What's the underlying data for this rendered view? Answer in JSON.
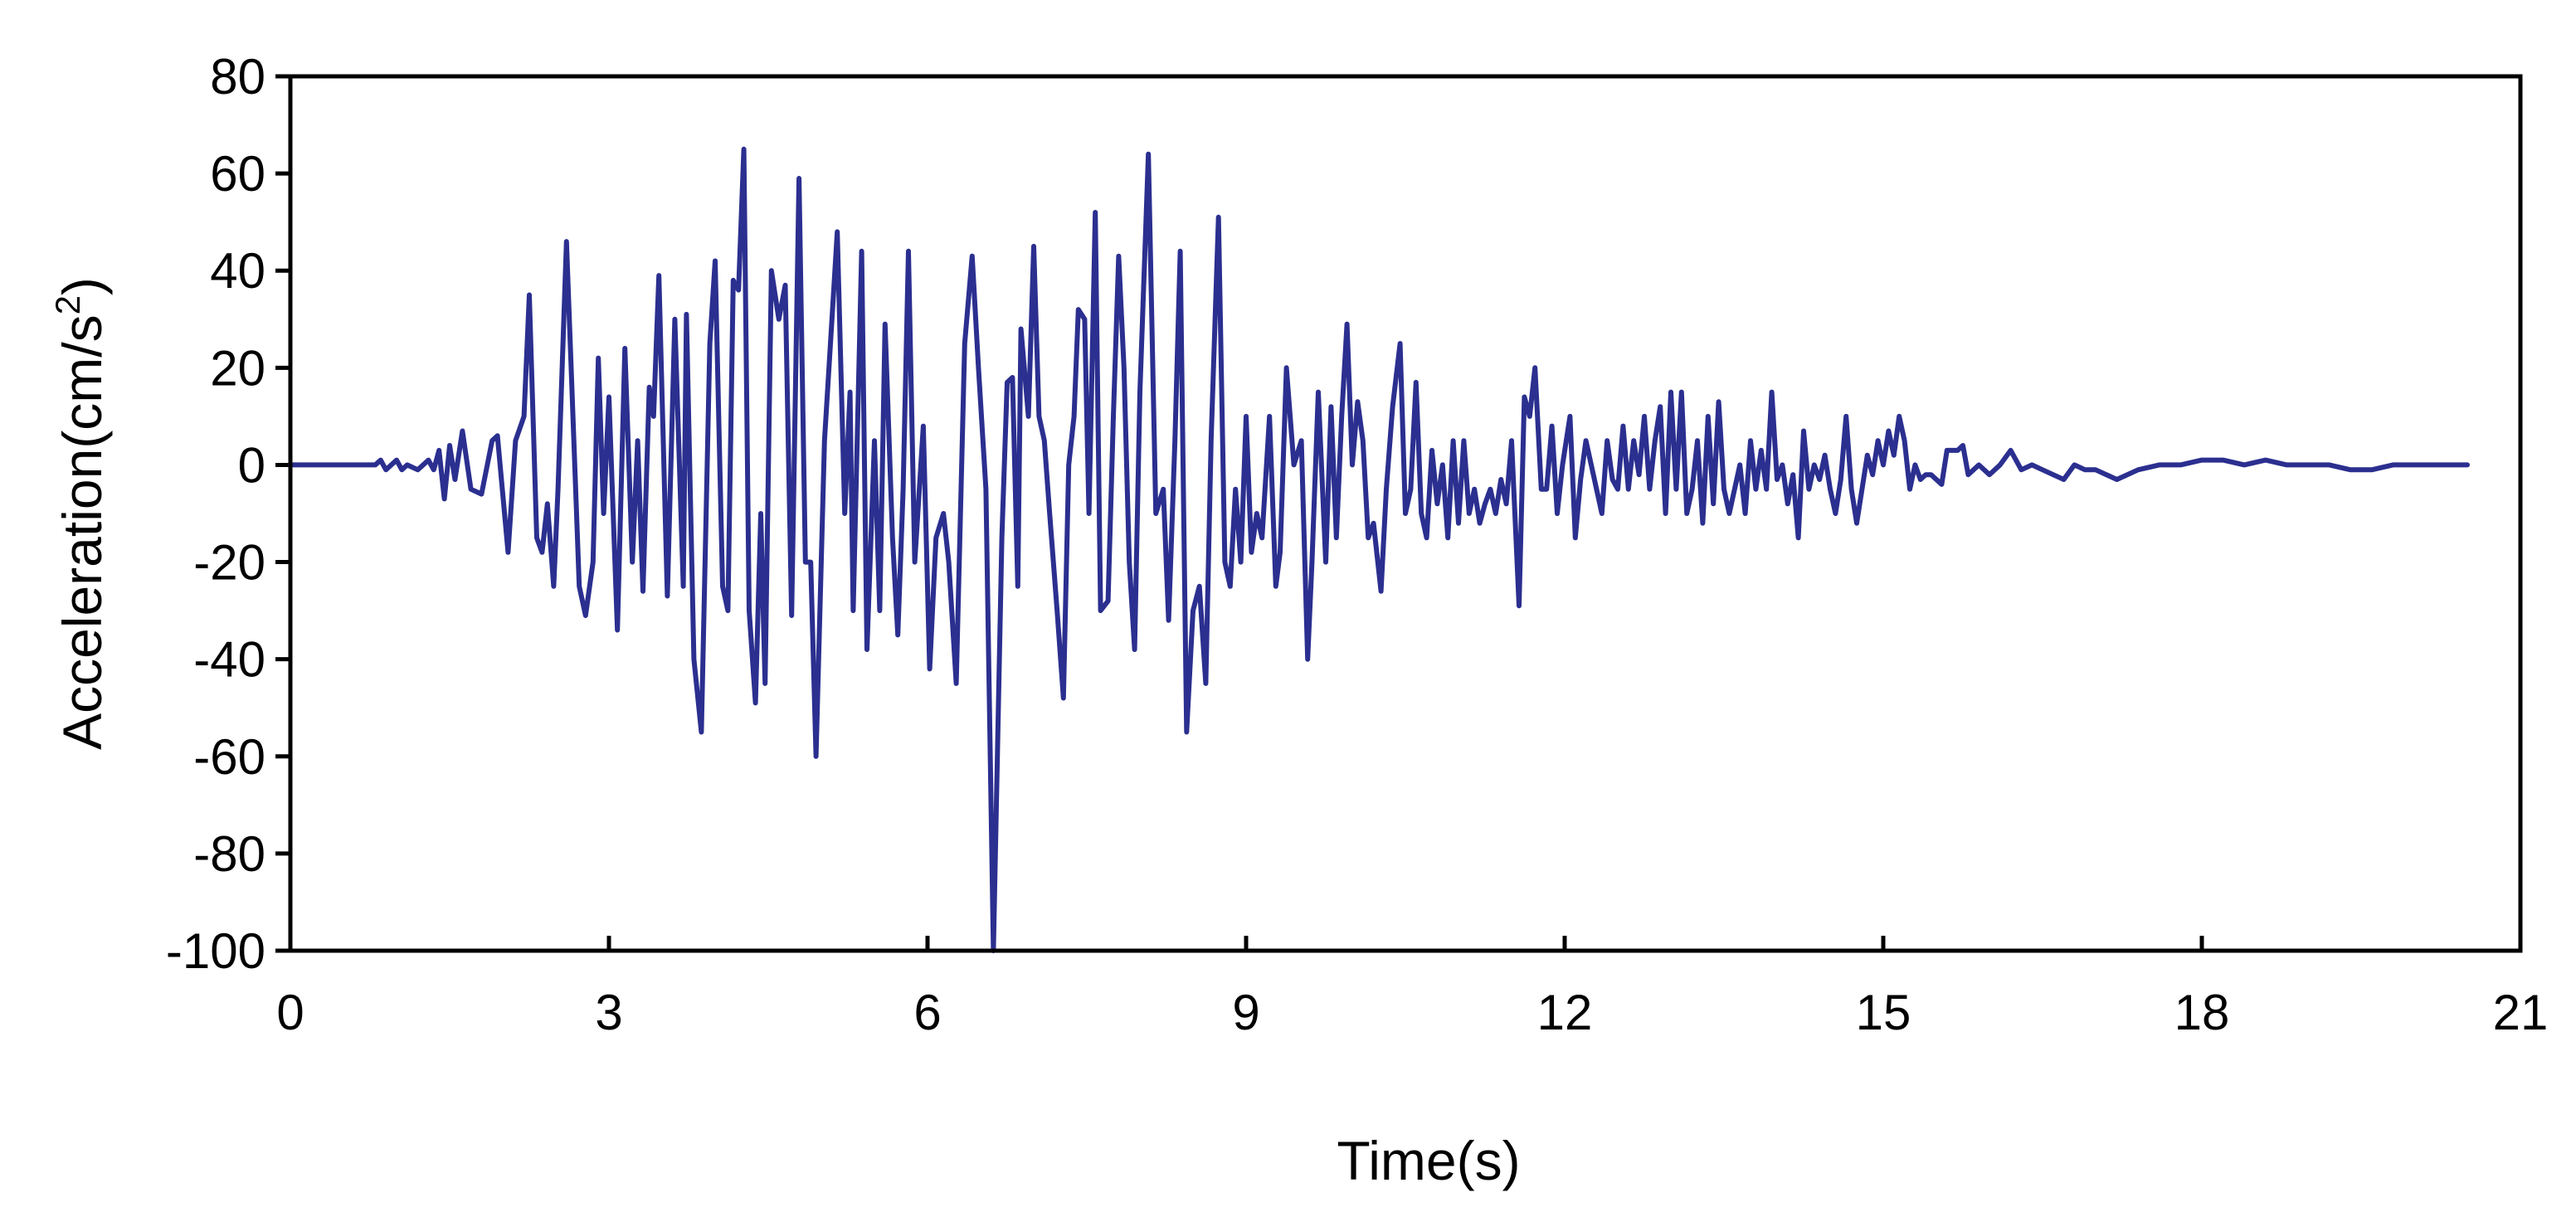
{
  "chart_data": {
    "type": "line",
    "title": "",
    "xlabel": "Time(s)",
    "ylabel_main": "Acceleration(cm/s",
    "ylabel_sup": "2",
    "ylabel_close": ")",
    "xlim": [
      0,
      21
    ],
    "ylim": [
      -100,
      80
    ],
    "xticks": [
      0,
      3,
      6,
      9,
      12,
      15,
      18,
      21
    ],
    "yticks": [
      80,
      60,
      40,
      20,
      0,
      -20,
      -40,
      -60,
      -80,
      -100
    ],
    "grid": false,
    "legend": "none",
    "series": [
      {
        "color": "#2b2f8f",
        "points": [
          [
            0,
            0
          ],
          [
            0.5,
            0
          ],
          [
            0.8,
            0
          ],
          [
            0.85,
            1
          ],
          [
            0.9,
            -1
          ],
          [
            0.95,
            0
          ],
          [
            1.0,
            1
          ],
          [
            1.05,
            -1
          ],
          [
            1.1,
            0
          ],
          [
            1.2,
            -1
          ],
          [
            1.3,
            1
          ],
          [
            1.35,
            -1
          ],
          [
            1.4,
            3
          ],
          [
            1.45,
            -7
          ],
          [
            1.5,
            4
          ],
          [
            1.55,
            -3
          ],
          [
            1.62,
            7
          ],
          [
            1.7,
            -5
          ],
          [
            1.8,
            -6
          ],
          [
            1.9,
            5
          ],
          [
            1.95,
            6
          ],
          [
            2.05,
            -18
          ],
          [
            2.12,
            5
          ],
          [
            2.2,
            10
          ],
          [
            2.25,
            35
          ],
          [
            2.32,
            -15
          ],
          [
            2.37,
            -18
          ],
          [
            2.42,
            -8
          ],
          [
            2.48,
            -25
          ],
          [
            2.52,
            -5
          ],
          [
            2.6,
            46
          ],
          [
            2.72,
            -25
          ],
          [
            2.78,
            -31
          ],
          [
            2.85,
            -20
          ],
          [
            2.9,
            22
          ],
          [
            2.95,
            -10
          ],
          [
            3.0,
            14
          ],
          [
            3.08,
            -34
          ],
          [
            3.15,
            24
          ],
          [
            3.22,
            -20
          ],
          [
            3.27,
            5
          ],
          [
            3.32,
            -26
          ],
          [
            3.38,
            16
          ],
          [
            3.42,
            10
          ],
          [
            3.47,
            39
          ],
          [
            3.55,
            -27
          ],
          [
            3.62,
            30
          ],
          [
            3.7,
            -25
          ],
          [
            3.73,
            31
          ],
          [
            3.8,
            -40
          ],
          [
            3.87,
            -55
          ],
          [
            3.95,
            25
          ],
          [
            4.0,
            42
          ],
          [
            4.07,
            -25
          ],
          [
            4.12,
            -30
          ],
          [
            4.17,
            38
          ],
          [
            4.22,
            36
          ],
          [
            4.27,
            65
          ],
          [
            4.32,
            -30
          ],
          [
            4.38,
            -49
          ],
          [
            4.43,
            -10
          ],
          [
            4.47,
            -45
          ],
          [
            4.53,
            40
          ],
          [
            4.6,
            30
          ],
          [
            4.66,
            37
          ],
          [
            4.72,
            -31
          ],
          [
            4.79,
            59
          ],
          [
            4.85,
            -20
          ],
          [
            4.9,
            -20
          ],
          [
            4.95,
            -60
          ],
          [
            5.03,
            5
          ],
          [
            5.1,
            30
          ],
          [
            5.15,
            48
          ],
          [
            5.22,
            -10
          ],
          [
            5.27,
            15
          ],
          [
            5.3,
            -30
          ],
          [
            5.38,
            44
          ],
          [
            5.43,
            -38
          ],
          [
            5.5,
            5
          ],
          [
            5.55,
            -30
          ],
          [
            5.6,
            29
          ],
          [
            5.67,
            -15
          ],
          [
            5.72,
            -35
          ],
          [
            5.77,
            -5
          ],
          [
            5.82,
            44
          ],
          [
            5.88,
            -20
          ],
          [
            5.96,
            8
          ],
          [
            6.02,
            -42
          ],
          [
            6.08,
            -15
          ],
          [
            6.15,
            -10
          ],
          [
            6.2,
            -20
          ],
          [
            6.27,
            -45
          ],
          [
            6.35,
            25
          ],
          [
            6.42,
            43
          ],
          [
            6.48,
            20
          ],
          [
            6.55,
            -5
          ],
          [
            6.62,
            -100
          ],
          [
            6.7,
            -15
          ],
          [
            6.75,
            17
          ],
          [
            6.8,
            18
          ],
          [
            6.85,
            -25
          ],
          [
            6.88,
            28
          ],
          [
            6.95,
            10
          ],
          [
            7.0,
            45
          ],
          [
            7.05,
            10
          ],
          [
            7.1,
            5
          ],
          [
            7.15,
            -10
          ],
          [
            7.22,
            -30
          ],
          [
            7.28,
            -48
          ],
          [
            7.33,
            0
          ],
          [
            7.38,
            10
          ],
          [
            7.42,
            32
          ],
          [
            7.48,
            30
          ],
          [
            7.52,
            -10
          ],
          [
            7.58,
            52
          ],
          [
            7.63,
            -30
          ],
          [
            7.7,
            -28
          ],
          [
            7.75,
            10
          ],
          [
            7.8,
            43
          ],
          [
            7.85,
            20
          ],
          [
            7.9,
            -20
          ],
          [
            7.95,
            -38
          ],
          [
            8.0,
            15
          ],
          [
            8.08,
            64
          ],
          [
            8.15,
            -10
          ],
          [
            8.22,
            -5
          ],
          [
            8.27,
            -32
          ],
          [
            8.33,
            5
          ],
          [
            8.38,
            44
          ],
          [
            8.44,
            -55
          ],
          [
            8.5,
            -30
          ],
          [
            8.56,
            -25
          ],
          [
            8.62,
            -45
          ],
          [
            8.67,
            5
          ],
          [
            8.74,
            51
          ],
          [
            8.8,
            -20
          ],
          [
            8.85,
            -25
          ],
          [
            8.9,
            -5
          ],
          [
            8.95,
            -20
          ],
          [
            9.0,
            10
          ],
          [
            9.05,
            -18
          ],
          [
            9.1,
            -10
          ],
          [
            9.15,
            -15
          ],
          [
            9.22,
            10
          ],
          [
            9.28,
            -25
          ],
          [
            9.32,
            -18
          ],
          [
            9.38,
            20
          ],
          [
            9.45,
            0
          ],
          [
            9.52,
            5
          ],
          [
            9.58,
            -40
          ],
          [
            9.62,
            -20
          ],
          [
            9.68,
            15
          ],
          [
            9.75,
            -20
          ],
          [
            9.8,
            12
          ],
          [
            9.85,
            -15
          ],
          [
            9.9,
            10
          ],
          [
            9.95,
            29
          ],
          [
            10.0,
            0
          ],
          [
            10.05,
            13
          ],
          [
            10.1,
            5
          ],
          [
            10.15,
            -15
          ],
          [
            10.2,
            -12
          ],
          [
            10.27,
            -26
          ],
          [
            10.32,
            -5
          ],
          [
            10.38,
            12
          ],
          [
            10.45,
            25
          ],
          [
            10.5,
            -10
          ],
          [
            10.55,
            -5
          ],
          [
            10.6,
            17
          ],
          [
            10.65,
            -10
          ],
          [
            10.7,
            -15
          ],
          [
            10.75,
            3
          ],
          [
            10.8,
            -8
          ],
          [
            10.85,
            0
          ],
          [
            10.9,
            -15
          ],
          [
            10.95,
            5
          ],
          [
            11.0,
            -12
          ],
          [
            11.05,
            5
          ],
          [
            11.1,
            -10
          ],
          [
            11.15,
            -5
          ],
          [
            11.2,
            -12
          ],
          [
            11.25,
            -8
          ],
          [
            11.3,
            -5
          ],
          [
            11.35,
            -10
          ],
          [
            11.4,
            -3
          ],
          [
            11.45,
            -8
          ],
          [
            11.5,
            5
          ],
          [
            11.57,
            -29
          ],
          [
            11.62,
            14
          ],
          [
            11.67,
            10
          ],
          [
            11.72,
            20
          ],
          [
            11.78,
            -5
          ],
          [
            11.83,
            -5
          ],
          [
            11.88,
            8
          ],
          [
            11.93,
            -10
          ],
          [
            11.98,
            0
          ],
          [
            12.05,
            10
          ],
          [
            12.1,
            -15
          ],
          [
            12.15,
            -3
          ],
          [
            12.2,
            5
          ],
          [
            12.25,
            0
          ],
          [
            12.3,
            -5
          ],
          [
            12.35,
            -10
          ],
          [
            12.4,
            5
          ],
          [
            12.45,
            -3
          ],
          [
            12.5,
            -5
          ],
          [
            12.55,
            8
          ],
          [
            12.6,
            -5
          ],
          [
            12.65,
            5
          ],
          [
            12.7,
            -2
          ],
          [
            12.75,
            10
          ],
          [
            12.8,
            -5
          ],
          [
            12.85,
            5
          ],
          [
            12.9,
            12
          ],
          [
            12.95,
            -10
          ],
          [
            13.0,
            15
          ],
          [
            13.05,
            -5
          ],
          [
            13.1,
            15
          ],
          [
            13.15,
            -10
          ],
          [
            13.2,
            -5
          ],
          [
            13.25,
            5
          ],
          [
            13.3,
            -12
          ],
          [
            13.35,
            10
          ],
          [
            13.4,
            -8
          ],
          [
            13.45,
            13
          ],
          [
            13.5,
            -5
          ],
          [
            13.55,
            -10
          ],
          [
            13.6,
            -5
          ],
          [
            13.65,
            0
          ],
          [
            13.7,
            -10
          ],
          [
            13.75,
            5
          ],
          [
            13.8,
            -5
          ],
          [
            13.85,
            3
          ],
          [
            13.9,
            -5
          ],
          [
            13.95,
            15
          ],
          [
            14.0,
            -3
          ],
          [
            14.05,
            0
          ],
          [
            14.1,
            -8
          ],
          [
            14.15,
            -2
          ],
          [
            14.2,
            -15
          ],
          [
            14.25,
            7
          ],
          [
            14.3,
            -5
          ],
          [
            14.35,
            0
          ],
          [
            14.4,
            -3
          ],
          [
            14.45,
            2
          ],
          [
            14.5,
            -5
          ],
          [
            14.55,
            -10
          ],
          [
            14.6,
            -3
          ],
          [
            14.65,
            10
          ],
          [
            14.7,
            -5
          ],
          [
            14.75,
            -12
          ],
          [
            14.8,
            -5
          ],
          [
            14.85,
            2
          ],
          [
            14.9,
            -2
          ],
          [
            14.95,
            5
          ],
          [
            15.0,
            0
          ],
          [
            15.05,
            7
          ],
          [
            15.1,
            2
          ],
          [
            15.15,
            10
          ],
          [
            15.2,
            5
          ],
          [
            15.25,
            -5
          ],
          [
            15.3,
            0
          ],
          [
            15.35,
            -3
          ],
          [
            15.4,
            -2
          ],
          [
            15.45,
            -2
          ],
          [
            15.55,
            -4
          ],
          [
            15.6,
            3
          ],
          [
            15.7,
            3
          ],
          [
            15.75,
            4
          ],
          [
            15.8,
            -2
          ],
          [
            15.9,
            0
          ],
          [
            16.0,
            -2
          ],
          [
            16.1,
            0
          ],
          [
            16.2,
            3
          ],
          [
            16.3,
            -1
          ],
          [
            16.4,
            0
          ],
          [
            16.5,
            -1
          ],
          [
            16.6,
            -2
          ],
          [
            16.7,
            -3
          ],
          [
            16.8,
            0
          ],
          [
            16.9,
            -1
          ],
          [
            17.0,
            -1
          ],
          [
            17.2,
            -3
          ],
          [
            17.4,
            -1
          ],
          [
            17.6,
            0
          ],
          [
            17.8,
            0
          ],
          [
            18.0,
            1
          ],
          [
            18.2,
            1
          ],
          [
            18.4,
            0
          ],
          [
            18.6,
            1
          ],
          [
            18.8,
            0
          ],
          [
            19.0,
            0
          ],
          [
            19.2,
            0
          ],
          [
            19.4,
            -1
          ],
          [
            19.6,
            -1
          ],
          [
            19.8,
            0
          ],
          [
            20.0,
            0
          ],
          [
            20.2,
            0
          ],
          [
            20.4,
            0
          ],
          [
            20.5,
            0
          ]
        ]
      }
    ]
  }
}
